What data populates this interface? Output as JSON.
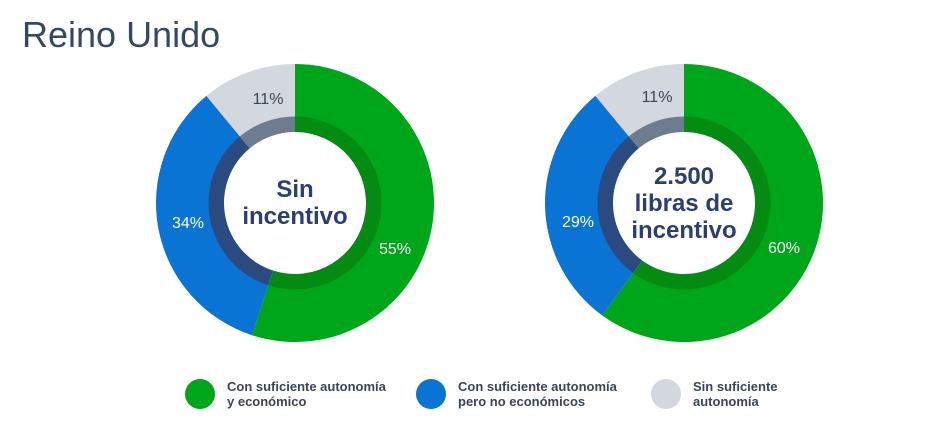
{
  "title": "Reino Unido",
  "colors": {
    "green": "#00a619",
    "blue": "#0a74d4",
    "gray": "#d3d7de",
    "green_dark": "#048b12",
    "blue_dark": "#2b4a80",
    "gray_dark": "#6e7c8f",
    "title": "#364a5f",
    "center_text": "#2b3f73"
  },
  "charts": [
    {
      "center_label": "Sin\nincentivo",
      "labels": {
        "green": "55%",
        "blue": "34%",
        "gray": "11%"
      }
    },
    {
      "center_label": "2.500\nlibras de\nincentivo",
      "labels": {
        "green": "60%",
        "blue": "29%",
        "gray": "11%"
      }
    }
  ],
  "legend": [
    {
      "label": "Con suficiente autonomía\ny económico",
      "color": "#00a619"
    },
    {
      "label": "Con suficiente autonomía\npero no económicos",
      "color": "#0a74d4"
    },
    {
      "label": "Sin suficiente\nautonomía",
      "color": "#d3d7de"
    }
  ],
  "chart_data": [
    {
      "type": "pie",
      "title": "Sin incentivo",
      "categories": [
        "Con suficiente autonomía y económico",
        "Con suficiente autonomía pero no económicos",
        "Sin suficiente autonomía"
      ],
      "values": [
        55,
        34,
        11
      ],
      "unit": "%",
      "donut": true,
      "legend_position": "bottom"
    },
    {
      "type": "pie",
      "title": "2.500 libras de incentivo",
      "categories": [
        "Con suficiente autonomía y económico",
        "Con suficiente autonomía pero no económicos",
        "Sin suficiente autonomía"
      ],
      "values": [
        60,
        29,
        11
      ],
      "unit": "%",
      "donut": true,
      "legend_position": "bottom"
    }
  ]
}
